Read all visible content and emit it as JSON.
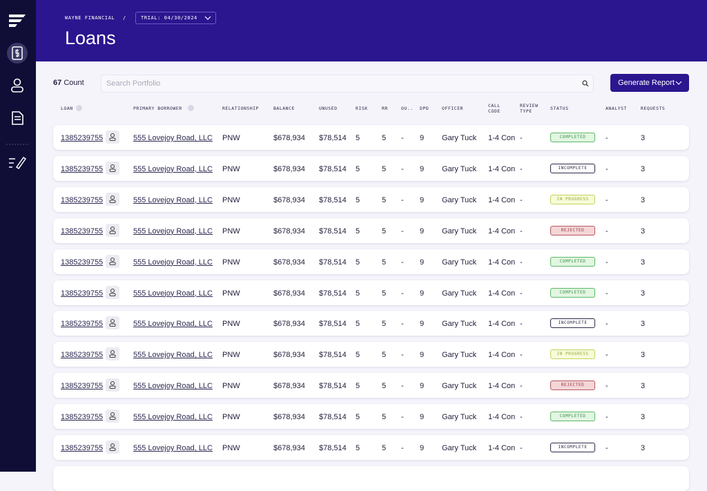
{
  "header": {
    "breadcrumb": "WAYNE FINANCIAL",
    "separator": "/",
    "trial": "TRIAL: 04/30/2024",
    "title": "Loans"
  },
  "toolbar": {
    "count": "67",
    "count_label": "Count",
    "search_placeholder": "Search Portfolio",
    "button": "Generate Report"
  },
  "table": {
    "columns": [
      "LOAN",
      "PRIMARY BORROWER",
      "RELATIONSHIP",
      "BALANCE",
      "UNUSED",
      "RISK",
      "RR",
      "OU..",
      "DPD",
      "OFFICER",
      "CALL CODE",
      "REVIEW TYPE",
      "STATUS",
      "ANALYST",
      "REQUESTS"
    ],
    "rows": [
      [
        "1385239755",
        "555 Lovejoy Road, LLC",
        "PNW",
        "$678,934",
        "$78,514",
        "5",
        "5",
        "-",
        "9",
        "Gary Tuck",
        "1-4 Con",
        "-",
        {
          "label": "COMPLETED",
          "color": "green"
        },
        "-",
        "3"
      ],
      [
        "1385239755",
        "555 Lovejoy Road, LLC",
        "PNW",
        "$678,934",
        "$78,514",
        "5",
        "5",
        "-",
        "9",
        "Gary Tuck",
        "1-4 Con",
        "-",
        {
          "label": "INCOMPLETE",
          "color": "gray"
        },
        "-",
        "3"
      ],
      [
        "1385239755",
        "555 Lovejoy Road, LLC",
        "PNW",
        "$678,934",
        "$78,514",
        "5",
        "5",
        "-",
        "9",
        "Gary Tuck",
        "1-4 Con",
        "-",
        {
          "label": "IN PROGRESS",
          "color": "yellow"
        },
        "-",
        "3"
      ],
      [
        "1385239755",
        "555 Lovejoy Road, LLC",
        "PNW",
        "$678,934",
        "$78,514",
        "5",
        "5",
        "-",
        "9",
        "Gary Tuck",
        "1-4 Con",
        "-",
        {
          "label": "REJECTED",
          "color": "red"
        },
        "-",
        "3"
      ],
      [
        "1385239755",
        "555 Lovejoy Road, LLC",
        "PNW",
        "$678,934",
        "$78,514",
        "5",
        "5",
        "-",
        "9",
        "Gary Tuck",
        "1-4 Con",
        "-",
        {
          "label": "COMPLETED",
          "color": "green"
        },
        "-",
        "3"
      ],
      [
        "1385239755",
        "555 Lovejoy Road, LLC",
        "PNW",
        "$678,934",
        "$78,514",
        "5",
        "5",
        "-",
        "9",
        "Gary Tuck",
        "1-4 Con",
        "-",
        {
          "label": "COMPLETED",
          "color": "green"
        },
        "-",
        "3"
      ],
      [
        "1385239755",
        "555 Lovejoy Road, LLC",
        "PNW",
        "$678,934",
        "$78,514",
        "5",
        "5",
        "-",
        "9",
        "Gary Tuck",
        "1-4 Con",
        "-",
        {
          "label": "INCOMPLETE",
          "color": "gray"
        },
        "-",
        "3"
      ],
      [
        "1385239755",
        "555 Lovejoy Road, LLC",
        "PNW",
        "$678,934",
        "$78,514",
        "5",
        "5",
        "-",
        "9",
        "Gary Tuck",
        "1-4 Con",
        "-",
        {
          "label": "IN PROGRESS",
          "color": "yellow"
        },
        "-",
        "3"
      ],
      [
        "1385239755",
        "555 Lovejoy Road, LLC",
        "PNW",
        "$678,934",
        "$78,514",
        "5",
        "5",
        "-",
        "9",
        "Gary Tuck",
        "1-4 Con",
        "-",
        {
          "label": "REJECTED",
          "color": "red"
        },
        "-",
        "3"
      ],
      [
        "1385239755",
        "555 Lovejoy Road, LLC",
        "PNW",
        "$678,934",
        "$78,514",
        "5",
        "5",
        "-",
        "9",
        "Gary Tuck",
        "1-4 Con",
        "-",
        {
          "label": "COMPLETED",
          "color": "green"
        },
        "-",
        "3"
      ],
      [
        "1385239755",
        "555 Lovejoy Road, LLC",
        "PNW",
        "$678,934",
        "$78,514",
        "5",
        "5",
        "-",
        "9",
        "Gary Tuck",
        "1-4 Con",
        "-",
        {
          "label": "INCOMPLETE",
          "color": "gray"
        },
        "-",
        "3"
      ]
    ]
  }
}
